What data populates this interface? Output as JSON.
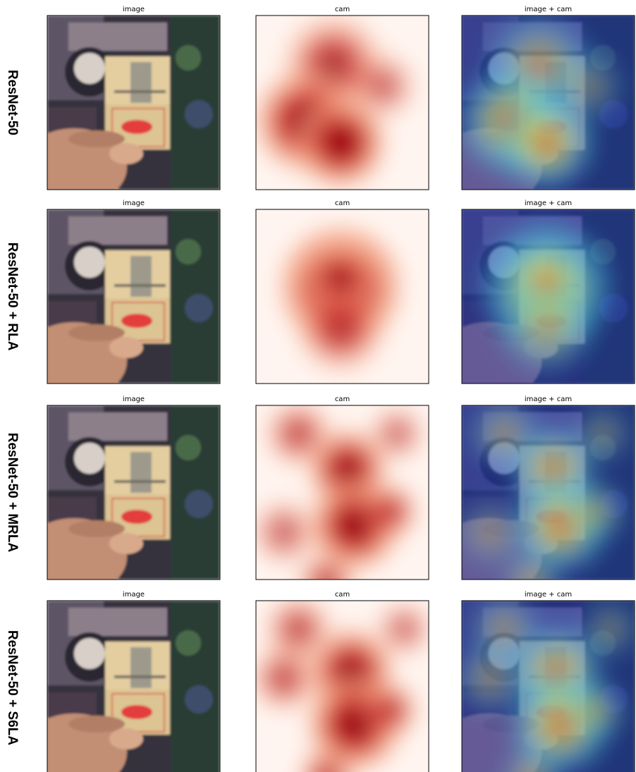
{
  "rows": [
    {
      "label": "ResNet-50",
      "panels": [
        "image",
        "cam",
        "image + cam"
      ]
    },
    {
      "label": "ResNet-50 + RLA",
      "panels": [
        "image",
        "cam",
        "image + cam"
      ]
    },
    {
      "label": "ResNet-50 + MRLA",
      "panels": [
        "image",
        "cam",
        "image + cam"
      ]
    },
    {
      "label": "ResNet-50 + S6LA",
      "panels": [
        "image",
        "cam",
        "image + cam"
      ]
    }
  ]
}
